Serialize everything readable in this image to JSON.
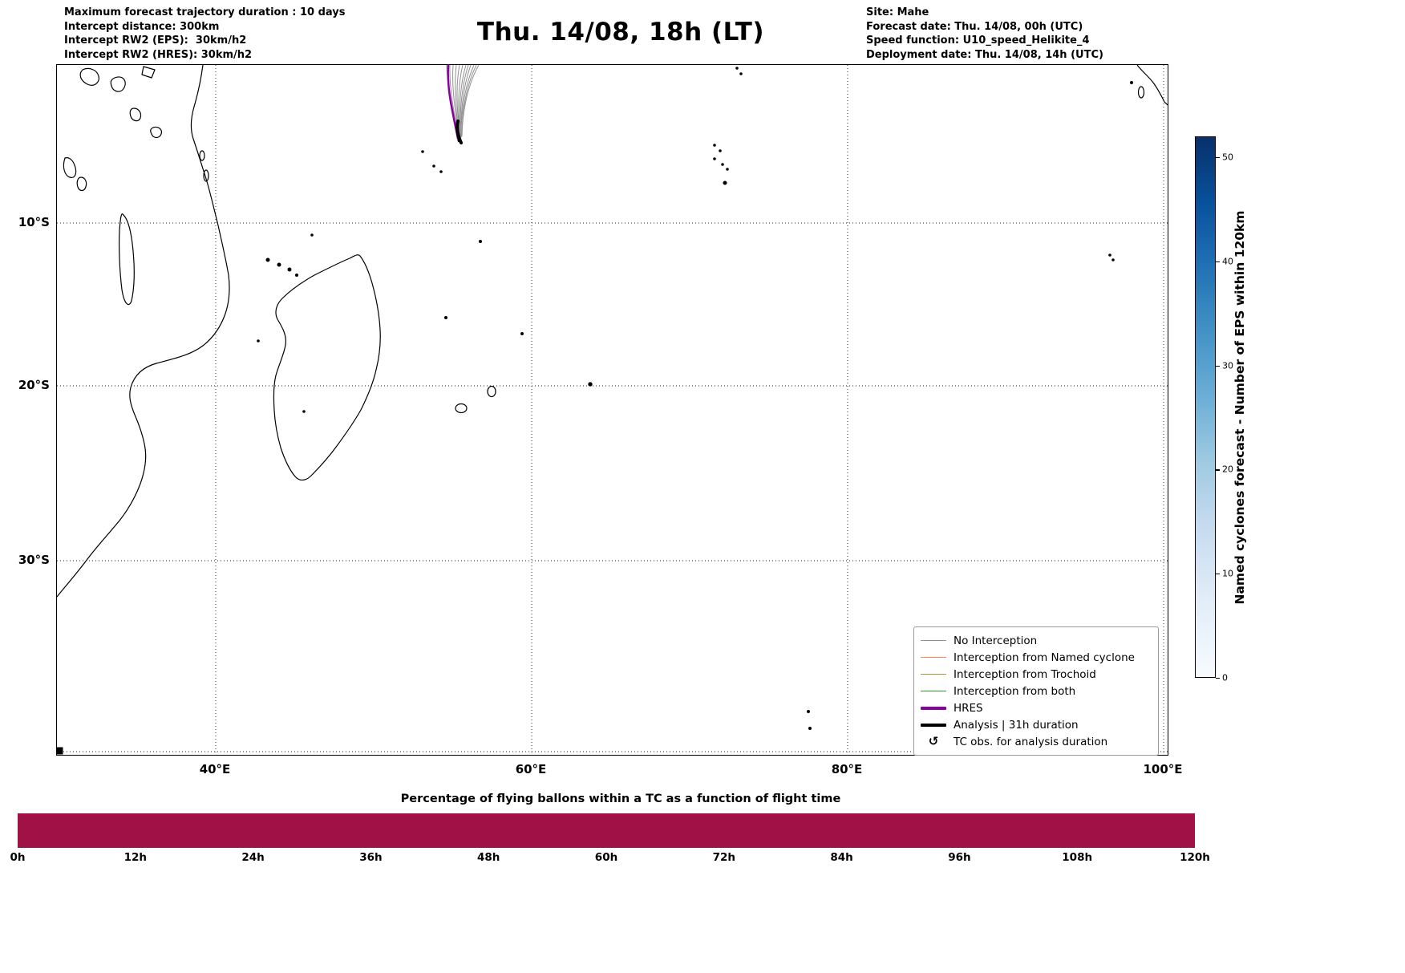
{
  "figure": {
    "title": "Thu. 14/08, 18h (LT)"
  },
  "header": {
    "left_lines": [
      "Maximum forecast trajectory duration : 10 days",
      "Intercept distance: 300km",
      "Intercept RW2 (EPS):  30km/h2",
      "Intercept RW2 (HRES): 30km/h2"
    ],
    "right_lines": [
      "Site: Mahe",
      "Forecast date: Thu. 14/08, 00h (UTC)",
      "Speed function: U10_speed_Helikite_4",
      "Deployment date: Thu. 14/08, 14h (UTC)"
    ]
  },
  "map": {
    "lat_ticks": [
      "10°S",
      "20°S",
      "30°S"
    ],
    "lon_ticks": [
      "40°E",
      "60°E",
      "80°E",
      "100°E"
    ],
    "legend": {
      "items": [
        {
          "label": "No Interception",
          "color": "#8c8c8c",
          "weight": 1.5
        },
        {
          "label": "Interception from Named cyclone",
          "color": "#ff7f50",
          "weight": 1.5
        },
        {
          "label": "Interception from Trochoid",
          "color": "#a6953c",
          "weight": 1.5
        },
        {
          "label": "Interception from both",
          "color": "#2d9b2d",
          "weight": 1.5
        },
        {
          "label": "HRES",
          "color": "#8a00a0",
          "weight": 4
        },
        {
          "label": "Analysis | 31h duration",
          "color": "#000000",
          "weight": 4
        },
        {
          "label": "TC obs. for analysis duration",
          "symbol": "↺"
        }
      ]
    },
    "trajectory_colors": {
      "eps_no_interception": "#8c8c8c",
      "hres": "#8a00a0",
      "analysis": "#000000"
    }
  },
  "colorbar": {
    "label": "Named cyclones forecast - Number of EPS within 120km",
    "ticks": [
      0,
      10,
      20,
      30,
      40,
      50
    ],
    "vmin": 0,
    "vmax": 52,
    "colormap": "Blues",
    "top_color": "#08306b",
    "bottom_color": "#f7fbff"
  },
  "bottom_chart": {
    "title": "Percentage of flying ballons within a TC as a function of flight time",
    "ticks": [
      "0h",
      "12h",
      "24h",
      "36h",
      "48h",
      "60h",
      "72h",
      "84h",
      "96h",
      "108h",
      "120h"
    ],
    "bar_color": "#a01146"
  },
  "chart_data": [
    {
      "type": "map",
      "title": "Thu. 14/08, 18h (LT)",
      "region": "Western Indian Ocean (East Africa, Madagascar, Mascarenes, Seychelles, Chagos)",
      "extent": {
        "lon_range": [
          30,
          100.3
        ],
        "lat_range": [
          -41.5,
          -0.5
        ]
      },
      "gridlines": {
        "lon": [
          40,
          60,
          80,
          100
        ],
        "lat": [
          -10,
          -20,
          -30,
          -40
        ],
        "style": "dotted"
      },
      "deployment_site": {
        "name": "Mahe",
        "lon": 55.5,
        "lat": -4.6
      },
      "trajectories": {
        "description": "Bundle of EPS balloon forecast trajectories launched from Mahe heading north past the equator; all classified as No Interception (gray), one HRES trajectory (purple), short black Analysis track of 31h duration at the launch point",
        "eps_member_class": "No Interception",
        "hres_present": true,
        "analysis_duration_hours": 31
      },
      "colorbar": {
        "label": "Named cyclones forecast - Number of EPS within 120km",
        "range": [
          0,
          52
        ],
        "ticks": [
          0,
          10,
          20,
          30,
          40,
          50
        ],
        "colormap": "Blues"
      },
      "legend_entries": [
        "No Interception",
        "Interception from Named cyclone",
        "Interception from Trochoid",
        "Interception from both",
        "HRES",
        "Analysis | 31h duration",
        "TC obs. for analysis duration"
      ]
    },
    {
      "type": "bar",
      "title": "Percentage of flying ballons within a TC as a function of flight time",
      "x": [
        0,
        12,
        24,
        36,
        48,
        60,
        72,
        84,
        96,
        108,
        120
      ],
      "x_unit": "h",
      "xlabel": "flight time",
      "values_percent": [
        100,
        100,
        100,
        100,
        100,
        100,
        100,
        100,
        100,
        100,
        100
      ],
      "note": "single uniform full-height crimson band spanning 0h-120h; no y-axis shown",
      "color": "#a01146"
    }
  ]
}
